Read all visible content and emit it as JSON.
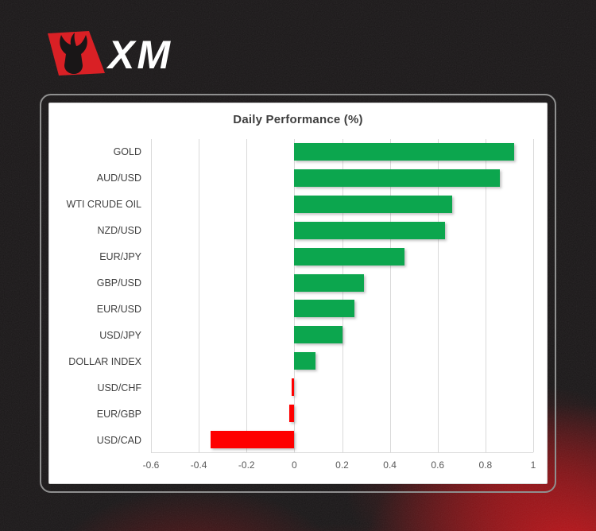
{
  "logo": {
    "text": "XM",
    "badge_color": "#d92025",
    "text_color": "#ffffff"
  },
  "chart": {
    "title": "Daily Performance (%)",
    "colors": {
      "positive": "#0CA64E",
      "negative": "#FE0000",
      "gridline": "#d9d9d9",
      "title_text": "#3f3f3f",
      "axis_text": "#595959",
      "panel_background": "#ffffff",
      "page_background": "#1a1718",
      "glow_red": "#cd141a"
    }
  },
  "chart_data": {
    "type": "bar",
    "orientation": "horizontal",
    "title": "Daily Performance (%)",
    "categories": [
      "GOLD",
      "AUD/USD",
      "WTI CRUDE OIL",
      "NZD/USD",
      "EUR/JPY",
      "GBP/USD",
      "EUR/USD",
      "USD/JPY",
      "DOLLAR INDEX",
      "USD/CHF",
      "EUR/GBP",
      "USD/CAD"
    ],
    "values": [
      0.92,
      0.86,
      0.66,
      0.63,
      0.46,
      0.29,
      0.25,
      0.2,
      0.09,
      -0.01,
      -0.02,
      -0.35
    ],
    "xlim": [
      -0.6,
      1.0
    ],
    "xticks": [
      -0.6,
      -0.4,
      -0.2,
      0,
      0.2,
      0.4,
      0.6,
      0.8,
      1
    ],
    "xtick_labels": [
      "-0.6",
      "-0.4",
      "-0.2",
      "0",
      "0.2",
      "0.4",
      "0.6",
      "0.8",
      "1"
    ],
    "grid": true,
    "legend": "none",
    "positive_color": "#0CA64E",
    "negative_color": "#FE0000"
  }
}
